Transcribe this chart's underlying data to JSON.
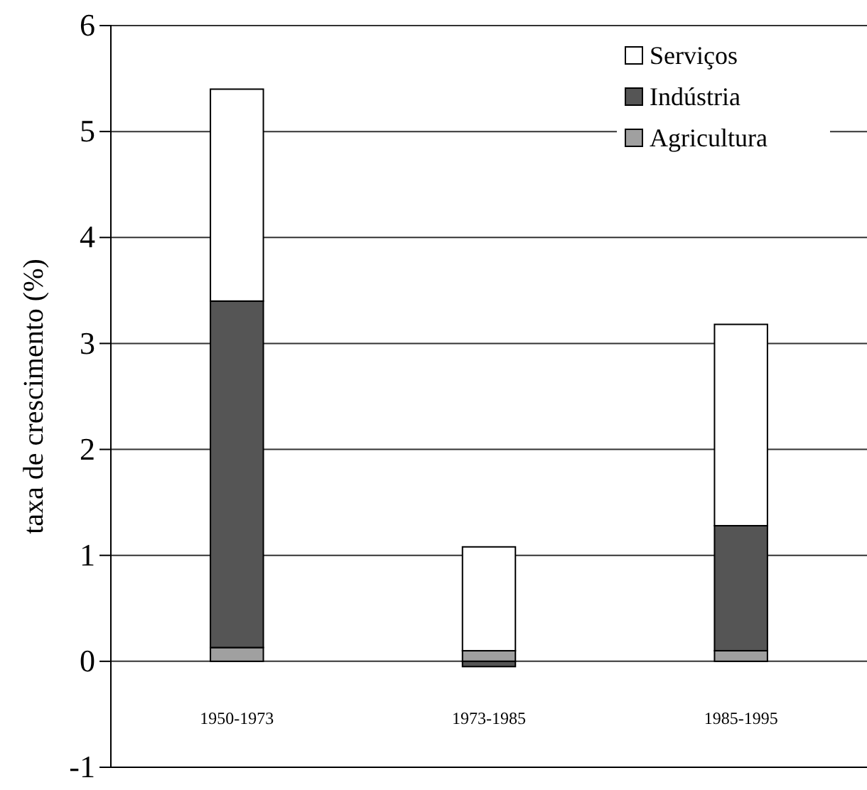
{
  "chart_data": {
    "type": "bar",
    "ylabel": "taxa de crescimento (%)",
    "categories": [
      "1950-1973",
      "1973-1985",
      "1985-1995"
    ],
    "stacked": true,
    "series": [
      {
        "name": "Agricultura",
        "color": "#a0a0a0",
        "values": [
          0.13,
          0.1,
          0.1
        ]
      },
      {
        "name": "Indústria",
        "color": "#555555",
        "values": [
          3.27,
          -0.05,
          1.18
        ]
      },
      {
        "name": "Serviços",
        "color": "#ffffff",
        "values": [
          2.0,
          0.98,
          1.9
        ]
      }
    ],
    "ylim": [
      -1,
      6
    ],
    "yticks": [
      -1,
      0,
      1,
      2,
      3,
      4,
      5,
      6
    ],
    "grid": "y",
    "legend": "top right"
  }
}
